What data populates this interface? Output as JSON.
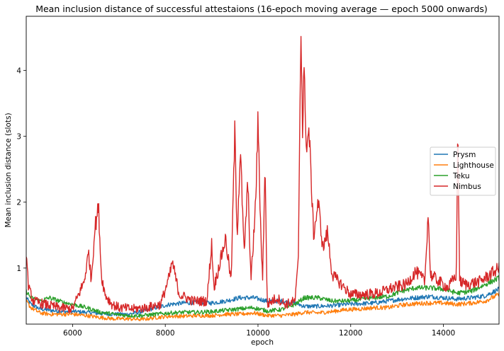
{
  "chart_data": {
    "type": "line",
    "title": "Mean inclusion distance of successful attestaions (16-epoch moving average — epoch 5000 onwards)",
    "xlabel": "epoch",
    "ylabel": "Mean inclusion distance (slots)",
    "xlim": [
      5000,
      15200
    ],
    "ylim": [
      0.15,
      4.82
    ],
    "xticks": [
      6000,
      8000,
      10000,
      12000,
      14000
    ],
    "yticks": [
      1,
      2,
      3,
      4
    ],
    "grid": false,
    "legend_position": "right",
    "series": [
      {
        "name": "Prysm",
        "color": "#1f77b4",
        "x": [
          5000,
          5100,
          5300,
          5500,
          5800,
          6000,
          6300,
          6600,
          6900,
          7200,
          7500,
          7800,
          8100,
          8400,
          8700,
          9000,
          9300,
          9600,
          9900,
          10200,
          10500,
          10800,
          11000,
          11300,
          11600,
          11900,
          12200,
          12500,
          12800,
          13100,
          13400,
          13700,
          14000,
          14300,
          14600,
          14900,
          15200
        ],
        "y": [
          0.55,
          0.45,
          0.38,
          0.36,
          0.34,
          0.34,
          0.33,
          0.31,
          0.3,
          0.3,
          0.34,
          0.4,
          0.45,
          0.47,
          0.48,
          0.47,
          0.5,
          0.55,
          0.55,
          0.5,
          0.5,
          0.47,
          0.42,
          0.42,
          0.43,
          0.45,
          0.46,
          0.47,
          0.5,
          0.53,
          0.55,
          0.57,
          0.55,
          0.53,
          0.55,
          0.58,
          0.68
        ]
      },
      {
        "name": "Lighthouse",
        "color": "#ff7f0e",
        "x": [
          5000,
          5100,
          5300,
          5500,
          5800,
          6000,
          6300,
          6600,
          6900,
          7200,
          7500,
          7800,
          8100,
          8400,
          8700,
          9000,
          9300,
          9600,
          9900,
          10200,
          10500,
          10800,
          11000,
          11300,
          11600,
          11900,
          12200,
          12500,
          12800,
          13100,
          13400,
          13700,
          14000,
          14300,
          14600,
          14900,
          15200
        ],
        "y": [
          0.5,
          0.4,
          0.32,
          0.3,
          0.3,
          0.3,
          0.28,
          0.25,
          0.23,
          0.23,
          0.22,
          0.25,
          0.27,
          0.27,
          0.28,
          0.28,
          0.3,
          0.3,
          0.32,
          0.28,
          0.28,
          0.3,
          0.33,
          0.32,
          0.34,
          0.37,
          0.38,
          0.4,
          0.4,
          0.44,
          0.46,
          0.47,
          0.47,
          0.45,
          0.47,
          0.5,
          0.6
        ]
      },
      {
        "name": "Teku",
        "color": "#2ca02c",
        "x": [
          5000,
          5100,
          5300,
          5500,
          5800,
          6000,
          6300,
          6600,
          6900,
          7200,
          7500,
          7800,
          8100,
          8400,
          8700,
          9000,
          9300,
          9600,
          9900,
          10200,
          10500,
          10800,
          11000,
          11300,
          11600,
          11900,
          12200,
          12500,
          12800,
          13100,
          13400,
          13700,
          14000,
          14300,
          14600,
          14900,
          15200
        ],
        "y": [
          0.65,
          0.55,
          0.5,
          0.55,
          0.48,
          0.45,
          0.4,
          0.33,
          0.3,
          0.28,
          0.28,
          0.3,
          0.32,
          0.33,
          0.33,
          0.34,
          0.36,
          0.38,
          0.4,
          0.35,
          0.37,
          0.45,
          0.55,
          0.55,
          0.5,
          0.5,
          0.52,
          0.55,
          0.57,
          0.65,
          0.7,
          0.7,
          0.68,
          0.62,
          0.65,
          0.75,
          0.85
        ]
      },
      {
        "name": "Nimbus",
        "color": "#d62728",
        "x": [
          5000,
          5050,
          5150,
          5400,
          5700,
          6000,
          6250,
          6350,
          6400,
          6480,
          6560,
          6620,
          6700,
          6850,
          7000,
          7300,
          7600,
          7900,
          8100,
          8150,
          8300,
          8600,
          8900,
          9000,
          9050,
          9150,
          9300,
          9420,
          9500,
          9550,
          9620,
          9700,
          9780,
          9850,
          9950,
          10000,
          10050,
          10100,
          10150,
          10200,
          10400,
          10600,
          10800,
          10870,
          10900,
          10930,
          10960,
          10990,
          11050,
          11100,
          11200,
          11300,
          11400,
          11500,
          11600,
          11800,
          12000,
          12300,
          12600,
          12900,
          13200,
          13400,
          13600,
          13670,
          13720,
          13900,
          14100,
          14280,
          14310,
          14350,
          14500,
          14800,
          15000,
          15200
        ],
        "y": [
          1.23,
          0.7,
          0.5,
          0.45,
          0.4,
          0.38,
          0.8,
          1.25,
          0.8,
          1.6,
          1.93,
          0.9,
          0.6,
          0.45,
          0.4,
          0.38,
          0.4,
          0.45,
          0.9,
          1.1,
          0.6,
          0.5,
          0.5,
          1.37,
          0.7,
          1.0,
          1.45,
          0.8,
          3.08,
          1.5,
          2.8,
          1.2,
          2.3,
          0.8,
          2.0,
          3.24,
          1.8,
          0.8,
          2.62,
          0.45,
          0.55,
          0.45,
          0.5,
          1.1,
          3.16,
          4.79,
          3.0,
          4.0,
          2.8,
          3.1,
          1.5,
          2.0,
          1.3,
          1.55,
          0.9,
          0.75,
          0.6,
          0.6,
          0.62,
          0.7,
          0.75,
          0.95,
          0.8,
          1.86,
          0.9,
          0.8,
          0.7,
          0.9,
          3.24,
          0.8,
          0.75,
          0.8,
          0.9,
          1.0
        ]
      }
    ]
  }
}
